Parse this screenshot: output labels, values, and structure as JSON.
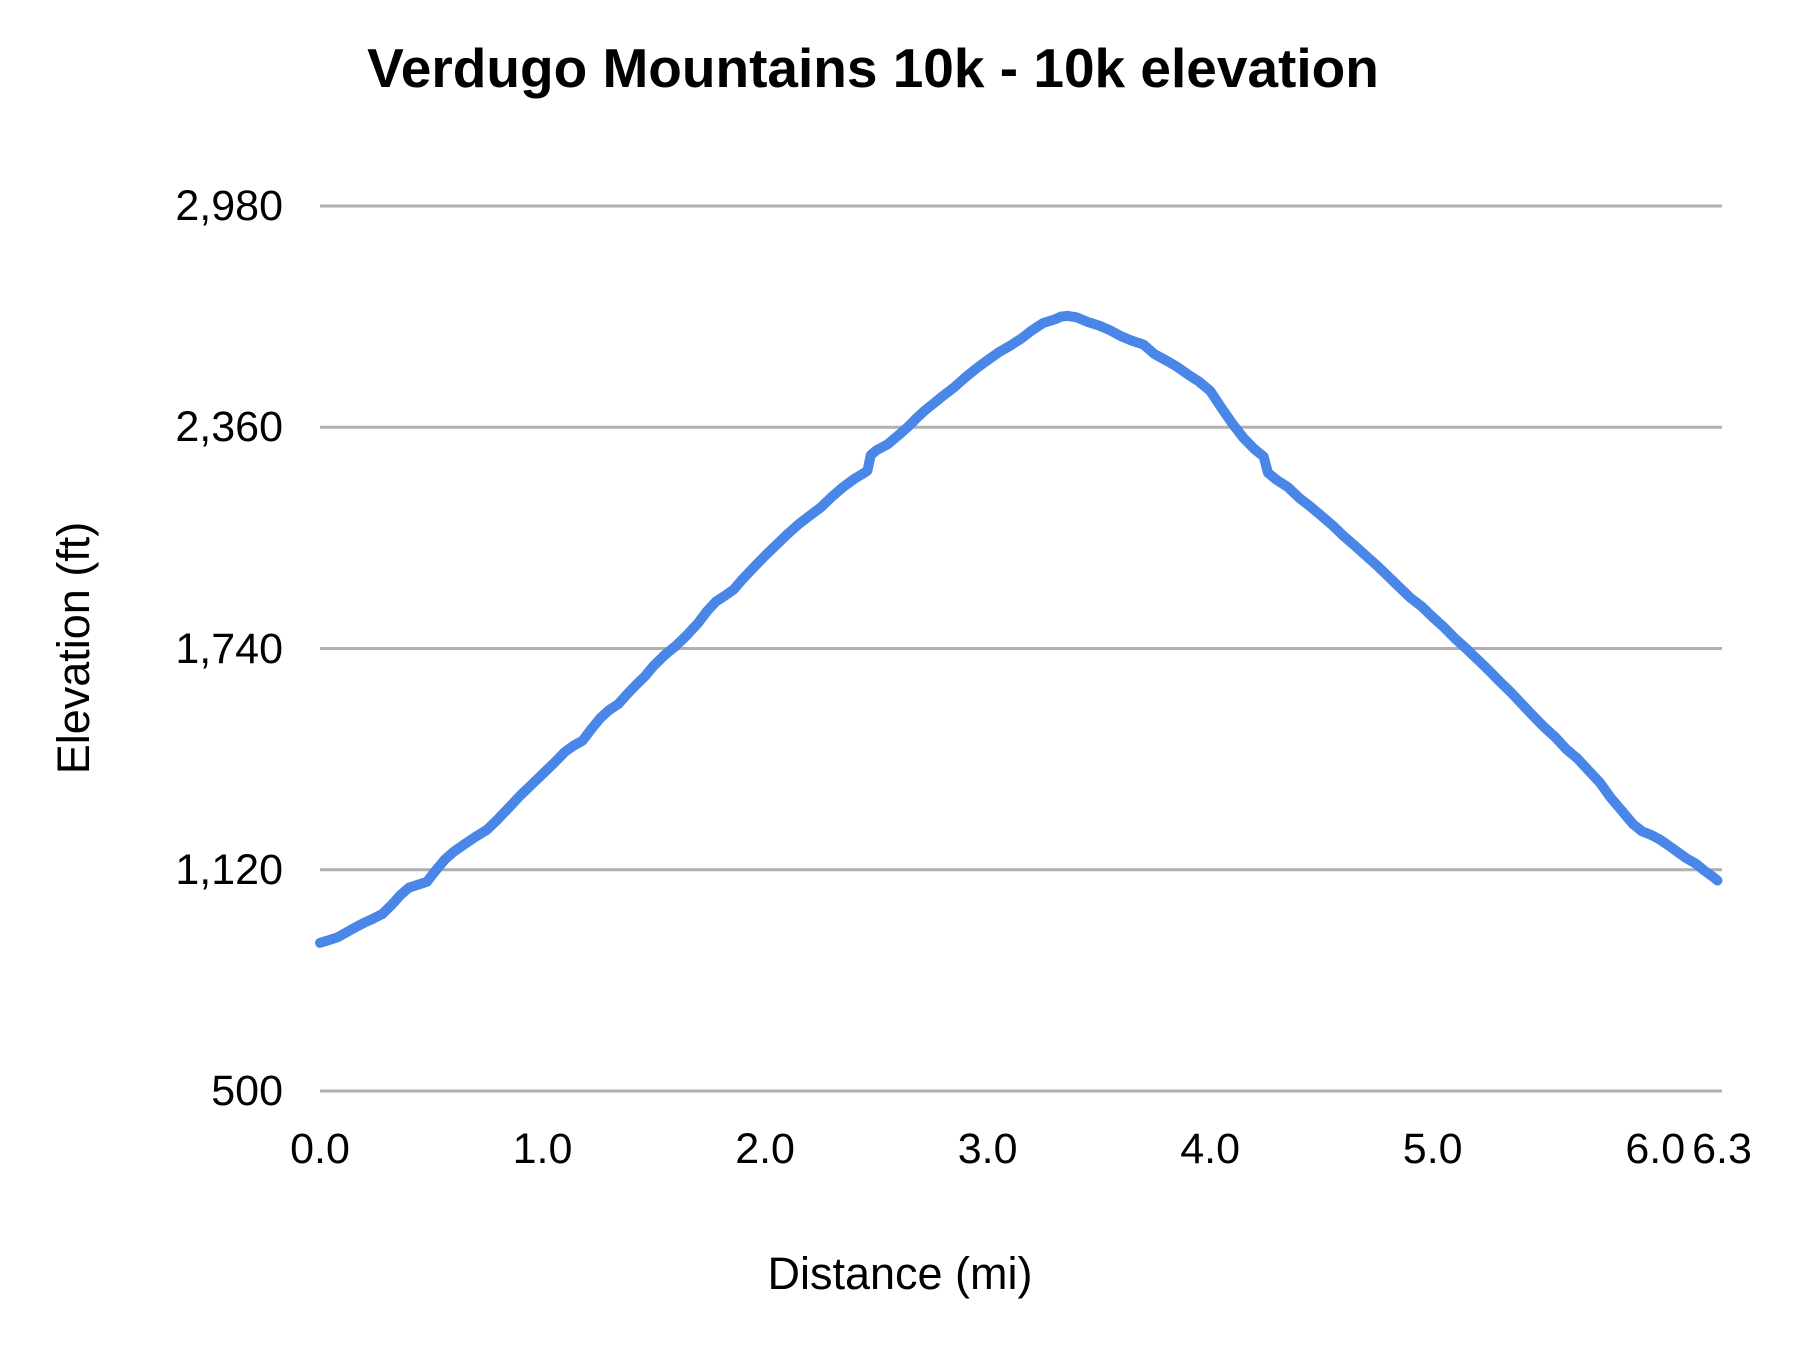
{
  "chart": {
    "title": "Verdugo Mountains 10k - 10k elevation",
    "xlabel": "Distance (mi)",
    "ylabel": "Elevation (ft)"
  },
  "chart_data": {
    "type": "line",
    "title": "Verdugo Mountains 10k - 10k elevation",
    "xlabel": "Distance (mi)",
    "ylabel": "Elevation (ft)",
    "xlim": [
      0,
      6.3
    ],
    "ylim": [
      500,
      2980
    ],
    "grid": "horizontal-only",
    "legend": "none",
    "line_color": "#4a86e8",
    "grid_color": "#b0b0b0",
    "line_width": 10,
    "x_ticks": [
      {
        "value": 0.0,
        "label": "0.0"
      },
      {
        "value": 1.0,
        "label": "1.0"
      },
      {
        "value": 2.0,
        "label": "2.0"
      },
      {
        "value": 3.0,
        "label": "3.0"
      },
      {
        "value": 4.0,
        "label": "4.0"
      },
      {
        "value": 5.0,
        "label": "5.0"
      },
      {
        "value": 6.0,
        "label": "6.0"
      },
      {
        "value": 6.3,
        "label": "6.3"
      }
    ],
    "y_ticks": [
      {
        "value": 500,
        "label": "500"
      },
      {
        "value": 1120,
        "label": "1,120"
      },
      {
        "value": 1740,
        "label": "1,740"
      },
      {
        "value": 2360,
        "label": "2,360"
      },
      {
        "value": 2980,
        "label": "2,980"
      }
    ],
    "series": [
      {
        "name": "elevation",
        "points": [
          [
            0.0,
            915
          ],
          [
            0.04,
            923
          ],
          [
            0.08,
            931
          ],
          [
            0.12,
            945
          ],
          [
            0.16,
            959
          ],
          [
            0.2,
            972
          ],
          [
            0.24,
            983
          ],
          [
            0.28,
            996
          ],
          [
            0.32,
            1020
          ],
          [
            0.36,
            1048
          ],
          [
            0.4,
            1070
          ],
          [
            0.44,
            1078
          ],
          [
            0.48,
            1086
          ],
          [
            0.52,
            1118
          ],
          [
            0.56,
            1148
          ],
          [
            0.6,
            1170
          ],
          [
            0.65,
            1192
          ],
          [
            0.7,
            1213
          ],
          [
            0.75,
            1232
          ],
          [
            0.8,
            1262
          ],
          [
            0.85,
            1295
          ],
          [
            0.9,
            1328
          ],
          [
            0.95,
            1358
          ],
          [
            1.0,
            1388
          ],
          [
            1.05,
            1418
          ],
          [
            1.1,
            1450
          ],
          [
            1.14,
            1468
          ],
          [
            1.18,
            1482
          ],
          [
            1.22,
            1515
          ],
          [
            1.26,
            1545
          ],
          [
            1.3,
            1568
          ],
          [
            1.34,
            1584
          ],
          [
            1.38,
            1612
          ],
          [
            1.42,
            1638
          ],
          [
            1.46,
            1662
          ],
          [
            1.5,
            1692
          ],
          [
            1.55,
            1722
          ],
          [
            1.6,
            1748
          ],
          [
            1.65,
            1778
          ],
          [
            1.7,
            1812
          ],
          [
            1.74,
            1845
          ],
          [
            1.78,
            1872
          ],
          [
            1.82,
            1888
          ],
          [
            1.86,
            1906
          ],
          [
            1.9,
            1935
          ],
          [
            1.95,
            1968
          ],
          [
            2.0,
            2000
          ],
          [
            2.05,
            2030
          ],
          [
            2.1,
            2060
          ],
          [
            2.15,
            2088
          ],
          [
            2.2,
            2112
          ],
          [
            2.25,
            2135
          ],
          [
            2.3,
            2165
          ],
          [
            2.35,
            2192
          ],
          [
            2.4,
            2215
          ],
          [
            2.44,
            2230
          ],
          [
            2.46,
            2238
          ],
          [
            2.475,
            2282
          ],
          [
            2.5,
            2295
          ],
          [
            2.55,
            2312
          ],
          [
            2.6,
            2338
          ],
          [
            2.64,
            2360
          ],
          [
            2.68,
            2385
          ],
          [
            2.72,
            2408
          ],
          [
            2.76,
            2428
          ],
          [
            2.8,
            2448
          ],
          [
            2.85,
            2472
          ],
          [
            2.9,
            2500
          ],
          [
            2.95,
            2525
          ],
          [
            3.0,
            2548
          ],
          [
            3.05,
            2570
          ],
          [
            3.1,
            2588
          ],
          [
            3.15,
            2608
          ],
          [
            3.2,
            2632
          ],
          [
            3.25,
            2652
          ],
          [
            3.3,
            2662
          ],
          [
            3.33,
            2670
          ],
          [
            3.36,
            2672
          ],
          [
            3.4,
            2668
          ],
          [
            3.45,
            2655
          ],
          [
            3.5,
            2645
          ],
          [
            3.55,
            2632
          ],
          [
            3.6,
            2615
          ],
          [
            3.65,
            2602
          ],
          [
            3.7,
            2592
          ],
          [
            3.75,
            2565
          ],
          [
            3.8,
            2548
          ],
          [
            3.85,
            2530
          ],
          [
            3.9,
            2508
          ],
          [
            3.95,
            2488
          ],
          [
            4.0,
            2462
          ],
          [
            4.05,
            2415
          ],
          [
            4.1,
            2370
          ],
          [
            4.15,
            2330
          ],
          [
            4.2,
            2298
          ],
          [
            4.24,
            2278
          ],
          [
            4.26,
            2232
          ],
          [
            4.3,
            2212
          ],
          [
            4.35,
            2192
          ],
          [
            4.4,
            2162
          ],
          [
            4.45,
            2138
          ],
          [
            4.5,
            2112
          ],
          [
            4.55,
            2085
          ],
          [
            4.6,
            2055
          ],
          [
            4.65,
            2028
          ],
          [
            4.7,
            2000
          ],
          [
            4.75,
            1972
          ],
          [
            4.8,
            1942
          ],
          [
            4.85,
            1912
          ],
          [
            4.9,
            1882
          ],
          [
            4.95,
            1858
          ],
          [
            5.0,
            1828
          ],
          [
            5.05,
            1800
          ],
          [
            5.1,
            1768
          ],
          [
            5.15,
            1740
          ],
          [
            5.2,
            1710
          ],
          [
            5.25,
            1680
          ],
          [
            5.3,
            1648
          ],
          [
            5.35,
            1618
          ],
          [
            5.4,
            1585
          ],
          [
            5.45,
            1552
          ],
          [
            5.5,
            1520
          ],
          [
            5.55,
            1492
          ],
          [
            5.6,
            1458
          ],
          [
            5.65,
            1432
          ],
          [
            5.7,
            1398
          ],
          [
            5.75,
            1365
          ],
          [
            5.8,
            1322
          ],
          [
            5.85,
            1285
          ],
          [
            5.9,
            1248
          ],
          [
            5.94,
            1228
          ],
          [
            5.98,
            1218
          ],
          [
            6.02,
            1205
          ],
          [
            6.06,
            1188
          ],
          [
            6.1,
            1170
          ],
          [
            6.14,
            1152
          ],
          [
            6.18,
            1138
          ],
          [
            6.22,
            1118
          ],
          [
            6.26,
            1100
          ],
          [
            6.28,
            1090
          ]
        ]
      }
    ]
  }
}
